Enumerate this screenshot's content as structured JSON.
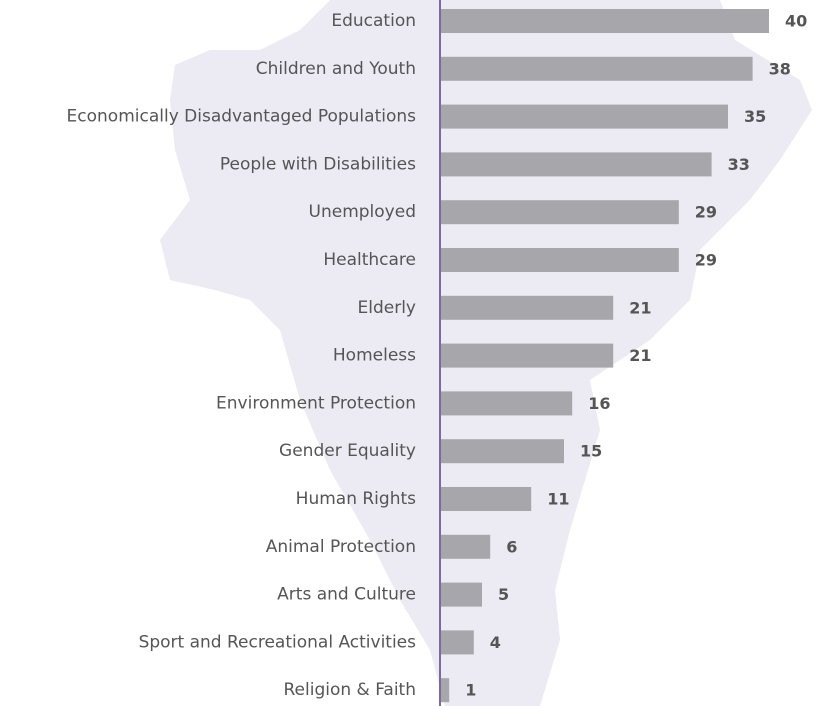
{
  "chart_data": {
    "type": "bar",
    "orientation": "horizontal",
    "categories": [
      "Education",
      "Children and Youth",
      "Economically Disadvantaged Populations",
      "People with Disabilities",
      "Unemployed",
      "Healthcare",
      "Elderly",
      "Homeless",
      "Environment Protection",
      "Gender Equality",
      "Human Rights",
      "Animal Protection",
      "Arts and Culture",
      "Sport and Recreational Activities",
      "Religion & Faith"
    ],
    "values": [
      40,
      38,
      35,
      33,
      29,
      29,
      21,
      21,
      16,
      15,
      11,
      6,
      5,
      4,
      1
    ],
    "color": "#a7a6ab"
  }
}
